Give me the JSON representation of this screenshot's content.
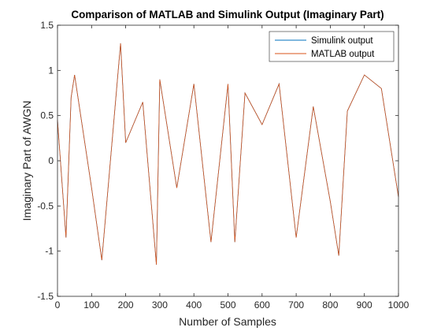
{
  "chart_data": {
    "type": "line",
    "title": "Comparison of MATLAB and Simulink Output (Imaginary Part)",
    "xlabel": "Number of Samples",
    "ylabel": "Imaginary Part of AWGN",
    "xlim": [
      0,
      1000
    ],
    "ylim": [
      -1.5,
      1.5
    ],
    "x_ticks": [
      0,
      100,
      200,
      300,
      400,
      500,
      600,
      700,
      800,
      900,
      1000
    ],
    "y_ticks": [
      -1.5,
      -1,
      -0.5,
      0,
      0.5,
      1,
      1.5
    ],
    "x_tick_labels": [
      "0",
      "100",
      "200",
      "300",
      "400",
      "500",
      "600",
      "700",
      "800",
      "900",
      "1000"
    ],
    "y_tick_labels": [
      "-1.5",
      "-1",
      "-0.5",
      "0",
      "0.5",
      "1",
      "1.5"
    ],
    "legend_position": "top-right",
    "grid": false,
    "series": [
      {
        "name": "Simulink output",
        "color": "#0072BD",
        "x": [
          0,
          25,
          40,
          50,
          100,
          130,
          185,
          200,
          250,
          290,
          300,
          350,
          400,
          450,
          500,
          520,
          550,
          600,
          650,
          700,
          750,
          800,
          825,
          850,
          900,
          950,
          1000
        ],
        "values": [
          0.45,
          -0.85,
          0.7,
          0.95,
          -0.3,
          -1.1,
          1.3,
          0.2,
          0.65,
          -1.15,
          0.9,
          -0.3,
          0.85,
          -0.9,
          0.85,
          -0.9,
          0.75,
          0.4,
          0.85,
          -0.85,
          0.6,
          -0.45,
          -1.05,
          0.55,
          0.95,
          0.8,
          -0.4
        ]
      },
      {
        "name": "MATLAB output",
        "color": "#D95319",
        "x": [
          0,
          25,
          40,
          50,
          100,
          130,
          185,
          200,
          250,
          290,
          300,
          350,
          400,
          450,
          500,
          520,
          550,
          600,
          650,
          700,
          750,
          800,
          825,
          850,
          900,
          950,
          1000
        ],
        "values": [
          0.45,
          -0.85,
          0.7,
          0.95,
          -0.3,
          -1.1,
          1.3,
          0.2,
          0.65,
          -1.15,
          0.9,
          -0.3,
          0.85,
          -0.9,
          0.85,
          -0.9,
          0.75,
          0.4,
          0.85,
          -0.85,
          0.6,
          -0.45,
          -1.05,
          0.55,
          0.95,
          0.8,
          -0.4
        ]
      }
    ]
  }
}
